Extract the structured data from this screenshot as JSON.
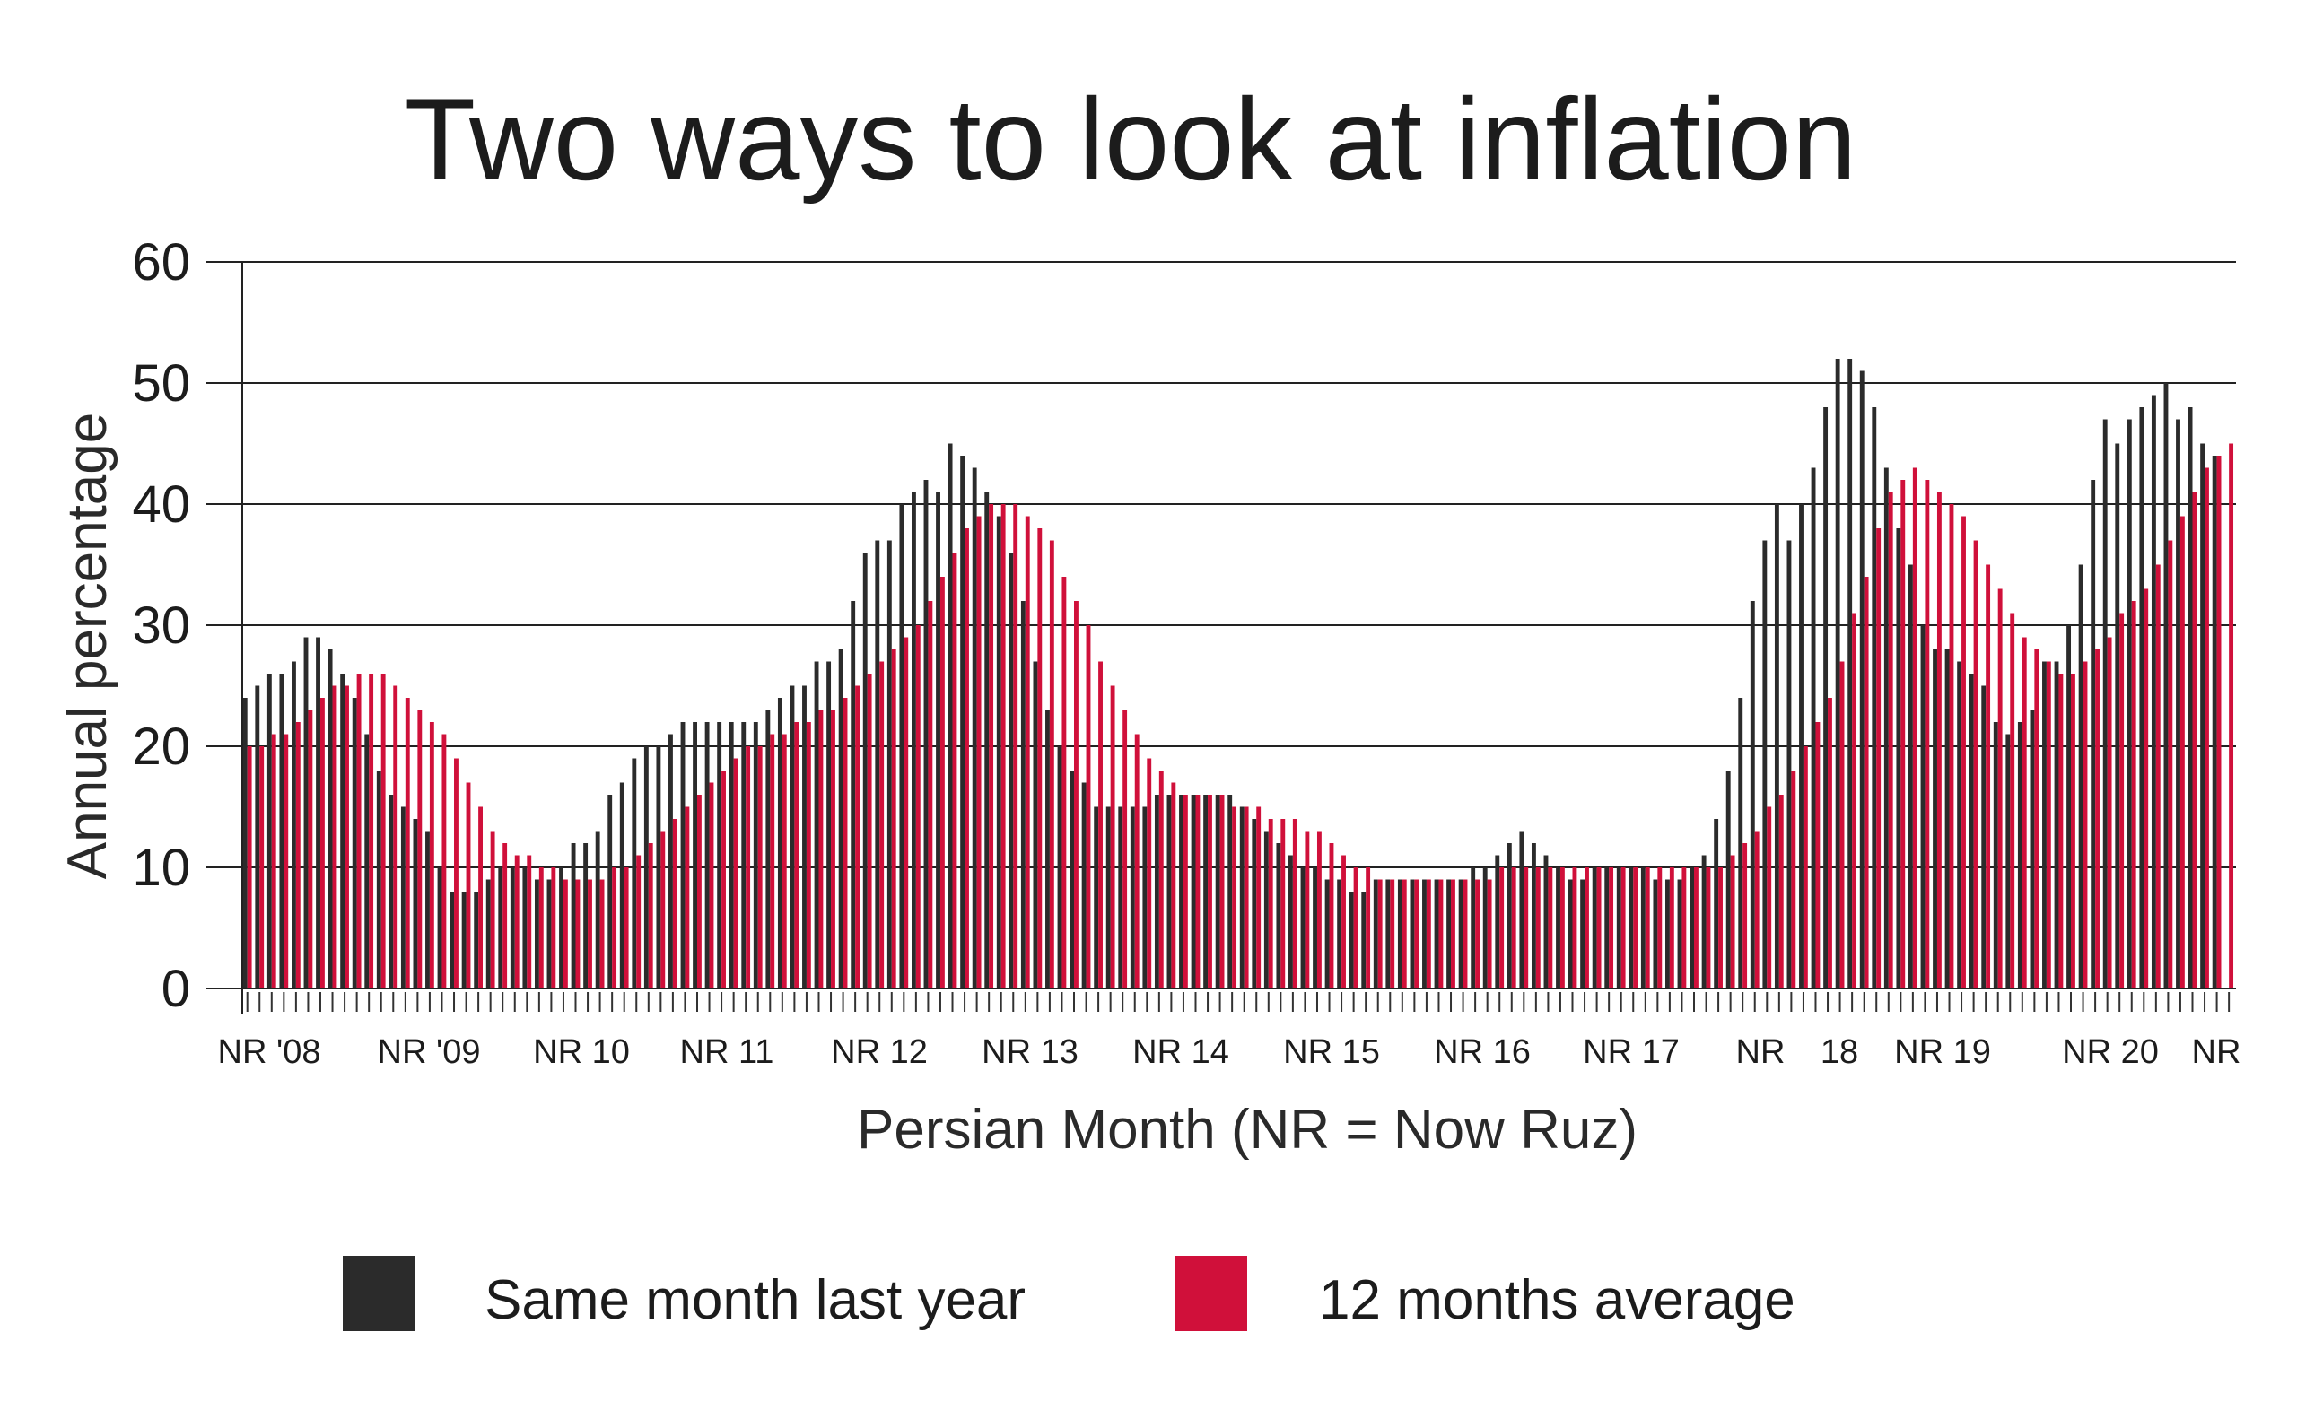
{
  "chart_data": {
    "type": "bar",
    "title": "Two ways to look at inflation",
    "xlabel": "Persian Month (NR = Now Ruz)",
    "ylabel": "Annual percentage",
    "ylim": [
      0,
      60
    ],
    "y_ticks": [
      "0",
      "10",
      "20",
      "30",
      "40",
      "50",
      "60"
    ],
    "grid": "horizontal",
    "legend_position": "bottom",
    "x_tick_labels": [
      "NR '08",
      "NR '09",
      "NR 10",
      "NR 11",
      "NR 12",
      "NR 13",
      "NR 14",
      "NR 15",
      "NR 16",
      "NR 17",
      "NR",
      "18",
      "NR 19",
      "NR 20",
      "NR"
    ],
    "series": [
      {
        "name": "Same month last year",
        "color": "#2b2b2b",
        "values": [
          24,
          25,
          26,
          26,
          27,
          29,
          29,
          28,
          26,
          24,
          21,
          18,
          16,
          15,
          14,
          13,
          10,
          8,
          8,
          8,
          9,
          10,
          10,
          10,
          9,
          9,
          10,
          12,
          12,
          13,
          16,
          17,
          19,
          20,
          20,
          21,
          22,
          22,
          22,
          22,
          22,
          22,
          22,
          23,
          24,
          25,
          25,
          27,
          27,
          28,
          32,
          36,
          37,
          37,
          40,
          41,
          42,
          41,
          45,
          44,
          43,
          41,
          39,
          36,
          32,
          27,
          23,
          20,
          18,
          17,
          15,
          15,
          15,
          15,
          15,
          16,
          16,
          16,
          16,
          16,
          16,
          16,
          15,
          14,
          13,
          12,
          11,
          10,
          10,
          9,
          9,
          8,
          8,
          9,
          9,
          9,
          9,
          9,
          9,
          9,
          9,
          10,
          10,
          11,
          12,
          13,
          12,
          11,
          10,
          9,
          9,
          10,
          10,
          10,
          10,
          10,
          9,
          9,
          9,
          10,
          11,
          14,
          18,
          24,
          32,
          37,
          40,
          37,
          40,
          43,
          48,
          52,
          52,
          51,
          48,
          43,
          38,
          35,
          30,
          28,
          28,
          27,
          26,
          25,
          22,
          21,
          22,
          23,
          27,
          27,
          30,
          35,
          42,
          47,
          45,
          47,
          48,
          49,
          50,
          47,
          48,
          45,
          44
        ],
        "note": "values estimated by reading the chart; one bar per Persian month"
      },
      {
        "name": "12 months average",
        "color": "#d0103a",
        "values": [
          20,
          20,
          21,
          21,
          22,
          23,
          24,
          25,
          25,
          26,
          26,
          26,
          25,
          24,
          23,
          22,
          21,
          19,
          17,
          15,
          13,
          12,
          11,
          11,
          10,
          10,
          9,
          9,
          9,
          9,
          10,
          10,
          11,
          12,
          13,
          14,
          15,
          16,
          17,
          18,
          19,
          20,
          20,
          21,
          21,
          22,
          22,
          23,
          23,
          24,
          25,
          26,
          27,
          28,
          29,
          30,
          32,
          34,
          36,
          38,
          39,
          40,
          40,
          40,
          39,
          38,
          37,
          34,
          32,
          30,
          27,
          25,
          23,
          21,
          19,
          18,
          17,
          16,
          16,
          16,
          16,
          15,
          15,
          15,
          14,
          14,
          14,
          13,
          13,
          12,
          11,
          10,
          10,
          9,
          9,
          9,
          9,
          9,
          9,
          9,
          9,
          9,
          9,
          10,
          10,
          10,
          10,
          10,
          10,
          10,
          10,
          10,
          10,
          10,
          10,
          10,
          10,
          10,
          10,
          10,
          10,
          10,
          11,
          12,
          13,
          15,
          16,
          18,
          20,
          22,
          24,
          27,
          31,
          34,
          38,
          41,
          42,
          43,
          42,
          41,
          40,
          39,
          37,
          35,
          33,
          31,
          29,
          28,
          27,
          26,
          26,
          27,
          28,
          29,
          31,
          32,
          33,
          35,
          37,
          39,
          41,
          43,
          44,
          45
        ]
      }
    ]
  }
}
